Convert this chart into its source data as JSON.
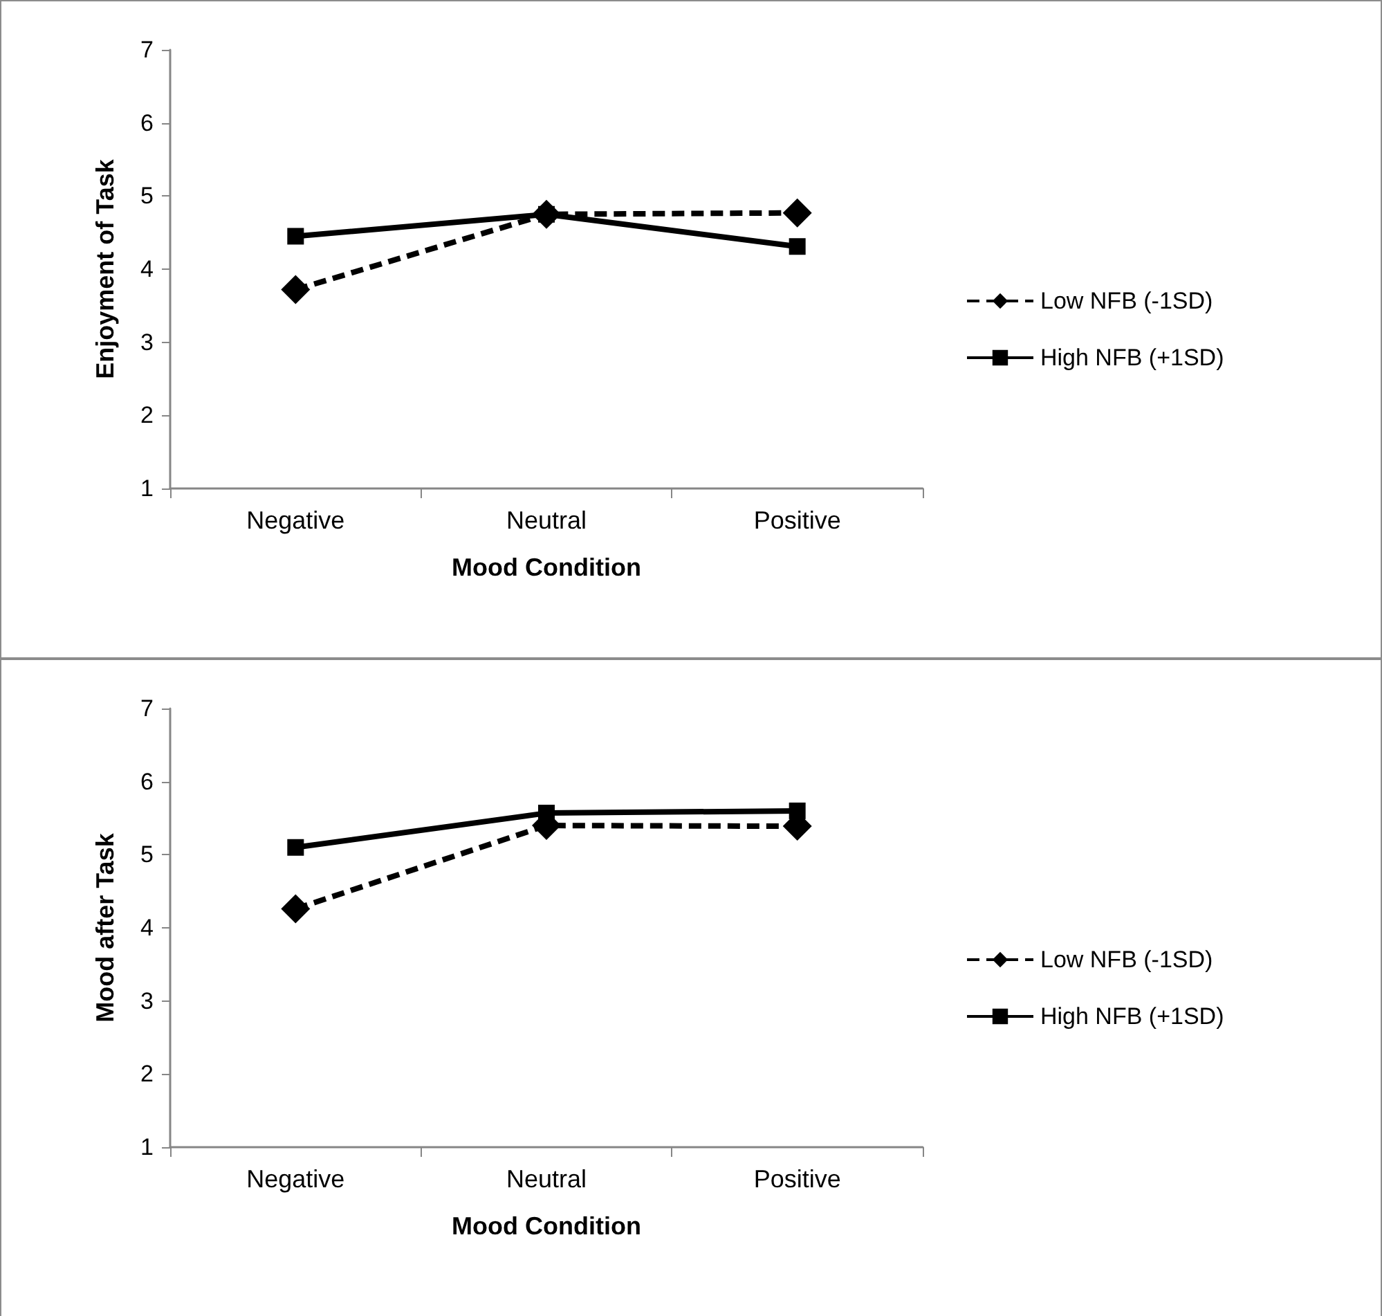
{
  "chart_data": [
    {
      "type": "line",
      "xlabel": "Mood Condition",
      "ylabel": "Enjoyment of Task",
      "categories": [
        "Negative",
        "Neutral",
        "Positive"
      ],
      "ylim": [
        1,
        7
      ],
      "yticks": [
        1,
        2,
        3,
        4,
        5,
        6,
        7
      ],
      "grid": false,
      "legend": "right",
      "series": [
        {
          "name": "Low NFB (-1SD)",
          "color": "#000000",
          "marker": "diamond",
          "line_style": "dashed",
          "values": [
            3.72,
            4.75,
            4.77
          ]
        },
        {
          "name": "High NFB (+1SD)",
          "color": "#000000",
          "marker": "square",
          "line_style": "solid",
          "values": [
            4.45,
            4.75,
            4.31
          ]
        }
      ]
    },
    {
      "type": "line",
      "xlabel": "Mood Condition",
      "ylabel": "Mood after Task",
      "categories": [
        "Negative",
        "Neutral",
        "Positive"
      ],
      "ylim": [
        1,
        7
      ],
      "yticks": [
        1,
        2,
        3,
        4,
        5,
        6,
        7
      ],
      "grid": false,
      "legend": "right",
      "series": [
        {
          "name": "Low NFB (-1SD)",
          "color": "#000000",
          "marker": "diamond",
          "line_style": "dashed",
          "values": [
            4.26,
            5.4,
            5.39
          ]
        },
        {
          "name": "High NFB (+1SD)",
          "color": "#000000",
          "marker": "square",
          "line_style": "solid",
          "values": [
            5.1,
            5.57,
            5.6
          ]
        }
      ]
    }
  ]
}
